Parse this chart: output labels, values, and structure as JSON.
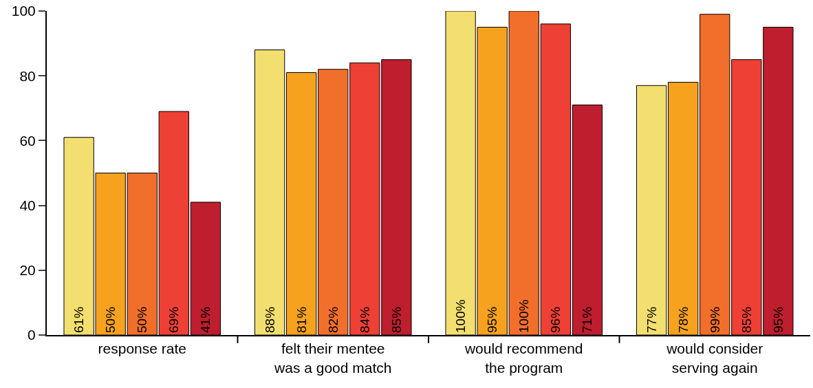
{
  "chart_data": {
    "type": "bar",
    "categories": [
      "response rate",
      "felt their mentee\nwas a good match",
      "would recommend\nthe program",
      "would consider\nserving again"
    ],
    "series": [
      {
        "color": "#f3df6f",
        "values": [
          61,
          88,
          100,
          77
        ],
        "value_labels": [
          "61%",
          "88%",
          "100%",
          "77%"
        ]
      },
      {
        "color": "#f6a21e",
        "values": [
          50,
          81,
          95,
          78
        ],
        "value_labels": [
          "50%",
          "81%",
          "95%",
          "78%"
        ]
      },
      {
        "color": "#f26f2b",
        "values": [
          50,
          82,
          100,
          99
        ],
        "value_labels": [
          "50%",
          "82%",
          "100%",
          "99%"
        ]
      },
      {
        "color": "#ee4035",
        "values": [
          69,
          84,
          96,
          85
        ],
        "value_labels": [
          "69%",
          "84%",
          "96%",
          "85%"
        ]
      },
      {
        "color": "#be1e2d",
        "values": [
          41,
          85,
          71,
          95
        ],
        "value_labels": [
          "41%",
          "85%",
          "71%",
          "95%"
        ]
      }
    ],
    "ylim": [
      0,
      100
    ],
    "yticks": [
      0,
      20,
      40,
      60,
      80,
      100
    ]
  }
}
